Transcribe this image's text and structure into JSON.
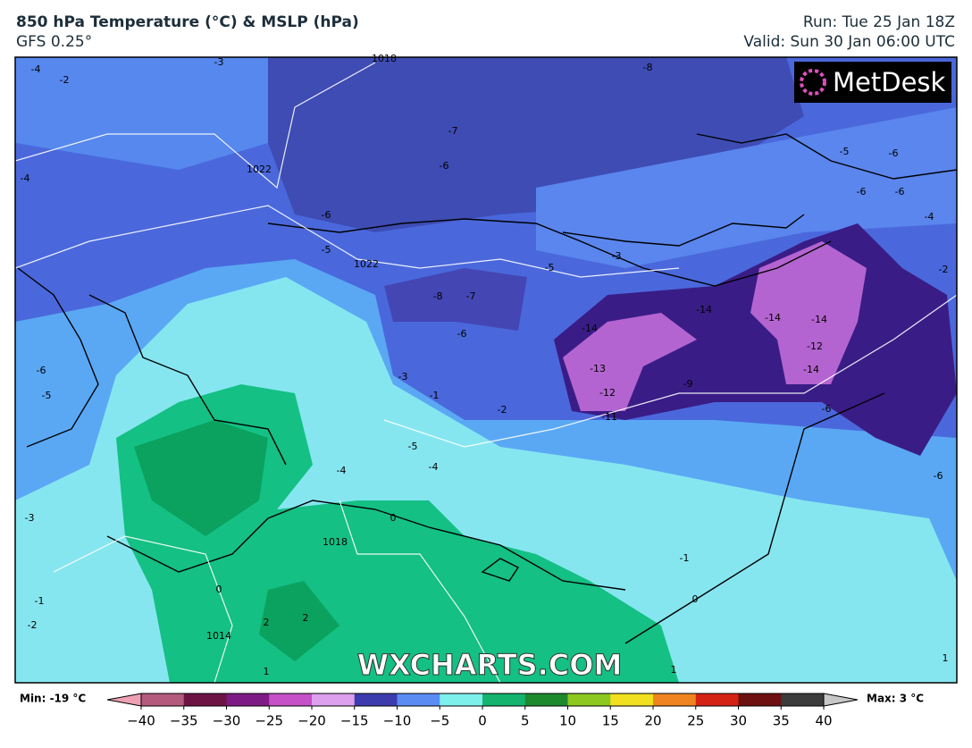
{
  "header": {
    "title": "850 hPa Temperature (°C) & MSLP (hPa)",
    "model": "GFS 0.25°",
    "run": "Run: Tue 25 Jan 18Z",
    "valid": "Valid: Sun 30 Jan 06:00 UTC"
  },
  "logo": "MetDesk",
  "watermark": "WXCHARTS.COM",
  "map": {
    "contour_labels": [
      "1018",
      "-3",
      "-4",
      "-2",
      "-8",
      "-7",
      "-6",
      "1022",
      "-6",
      "-5",
      "1022",
      "-5",
      "-3",
      "-8",
      "-7",
      "-6",
      "-14",
      "-13",
      "-12",
      "-11",
      "-14",
      "-9",
      "-14",
      "-14",
      "-12",
      "-14",
      "-6",
      "-3",
      "-1",
      "-2",
      "-5",
      "-4",
      "-4",
      "0",
      "1018",
      "0",
      "-1",
      "0",
      "2",
      "2",
      "1014",
      "1",
      "-3",
      "-1",
      "-2",
      "-6",
      "-5",
      "-4",
      "-6",
      "-4",
      "-2",
      "1",
      "1",
      "-6",
      "-5",
      "-6",
      "-6"
    ]
  },
  "colorbar": {
    "min_label": "Min: -19 °C",
    "max_label": "Max: 3 °C",
    "range": [
      -40,
      40
    ],
    "ticks": [
      {
        "value": -40,
        "label": "−40"
      },
      {
        "value": -35,
        "label": "−35"
      },
      {
        "value": -30,
        "label": "−30"
      },
      {
        "value": -25,
        "label": "−25"
      },
      {
        "value": -20,
        "label": "−20"
      },
      {
        "value": -15,
        "label": "−15"
      },
      {
        "value": -10,
        "label": "−10"
      },
      {
        "value": -5,
        "label": "−5"
      },
      0,
      5,
      10,
      15,
      20,
      25,
      30,
      35,
      40
    ],
    "colors": [
      "#eea0b4",
      "#b45a7c",
      "#6e1444",
      "#7e1a86",
      "#c650c8",
      "#dca0ee",
      "#3c3cae",
      "#5a8cf4",
      "#7ef0ec",
      "#14b46e",
      "#1e8a2e",
      "#8cc820",
      "#f0e020",
      "#f08420",
      "#d42214",
      "#6e1010",
      "#3c3c3c",
      "#c8c8c8"
    ]
  }
}
